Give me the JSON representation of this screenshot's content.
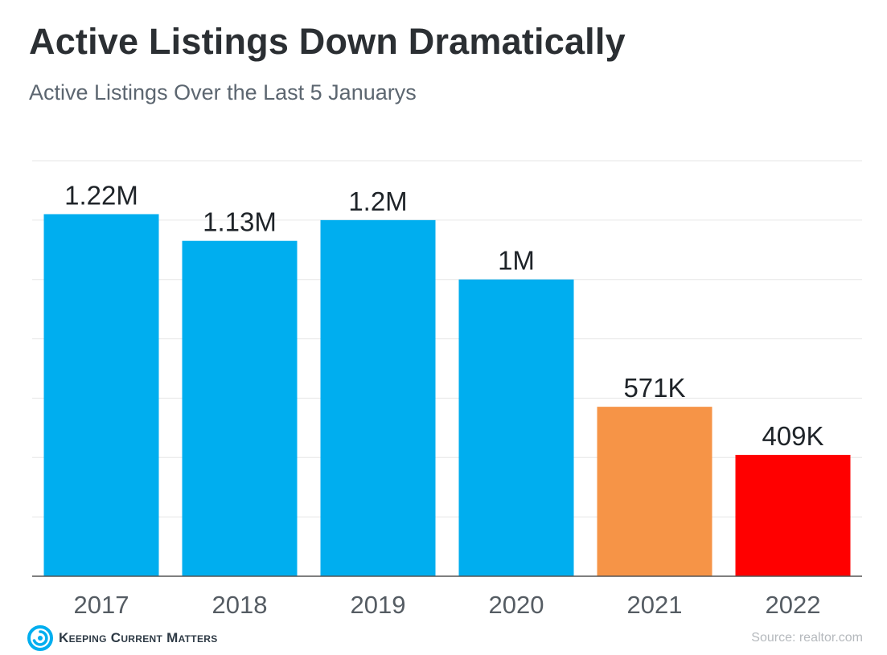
{
  "chart_data": {
    "type": "bar",
    "title": "Active Listings Down Dramatically",
    "subtitle": "Active Listings Over the Last 5 Januarys",
    "xlabel": "",
    "ylabel": "",
    "categories": [
      "2017",
      "2018",
      "2019",
      "2020",
      "2021",
      "2022"
    ],
    "values": [
      1220000,
      1130000,
      1200000,
      1000000,
      571000,
      409000
    ],
    "data_labels": [
      "1.22M",
      "1.13M",
      "1.2M",
      "1M",
      "571K",
      "409K"
    ],
    "bar_colors": [
      "#00aeef",
      "#00aeef",
      "#00aeef",
      "#00aeef",
      "#f69447",
      "#ff0000"
    ],
    "ylim": [
      0,
      1400000
    ],
    "grid": true,
    "gridline_color": "#e6e6e6",
    "axis_color": "#555555"
  },
  "branding": {
    "logo_text": "Keeping Current Matters",
    "logo_icon": "swirl-icon",
    "logo_color": "#00aeef"
  },
  "source": "Source: realtor.com"
}
